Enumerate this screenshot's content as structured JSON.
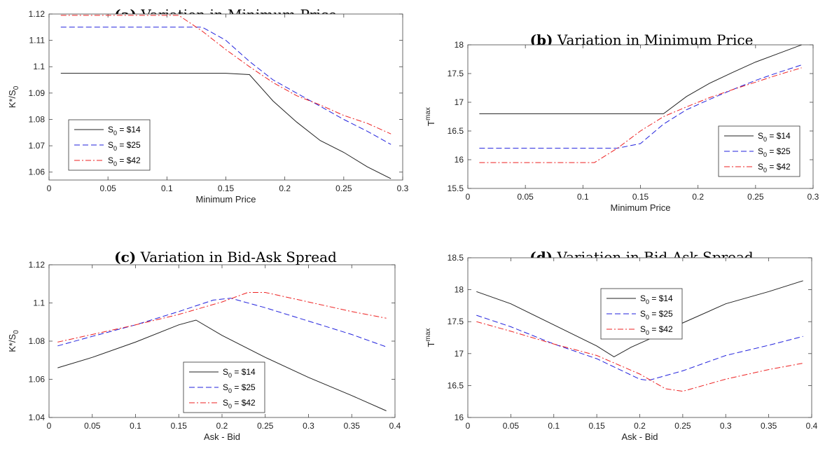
{
  "colors": {
    "s14": "#222222",
    "s25": "#2222dd",
    "s42": "#ee2222"
  },
  "chart_data": [
    {
      "id": "a",
      "type": "line",
      "title_tag": "(a)",
      "title": "Variation in Minimum Price",
      "xlabel": "Minimum Price",
      "ylabel_main": "K*/S",
      "ylabel_sub": "0",
      "xlim": [
        0,
        0.3
      ],
      "ylim": [
        1.057,
        1.12
      ],
      "xticks": [
        0,
        0.05,
        0.1,
        0.15,
        0.2,
        0.25,
        0.3
      ],
      "yticks": [
        1.06,
        1.07,
        1.08,
        1.09,
        1.1,
        1.11,
        1.12
      ],
      "grid": false,
      "legend_position": "left",
      "series": [
        {
          "name": "S0 = $14",
          "sub": "0",
          "value_label": " = $14",
          "style": "solid",
          "points": [
            [
              0.01,
              1.0975
            ],
            [
              0.05,
              1.0975
            ],
            [
              0.1,
              1.0975
            ],
            [
              0.15,
              1.0975
            ],
            [
              0.17,
              1.097
            ],
            [
              0.19,
              1.087
            ],
            [
              0.21,
              1.079
            ],
            [
              0.23,
              1.072
            ],
            [
              0.25,
              1.0675
            ],
            [
              0.27,
              1.062
            ],
            [
              0.29,
              1.0575
            ]
          ]
        },
        {
          "name": "S0 = $25",
          "sub": "0",
          "value_label": " = $25",
          "style": "dashed",
          "points": [
            [
              0.01,
              1.115
            ],
            [
              0.05,
              1.115
            ],
            [
              0.1,
              1.115
            ],
            [
              0.13,
              1.115
            ],
            [
              0.15,
              1.11
            ],
            [
              0.17,
              1.102
            ],
            [
              0.19,
              1.095
            ],
            [
              0.21,
              1.09
            ],
            [
              0.23,
              1.085
            ],
            [
              0.25,
              1.08
            ],
            [
              0.27,
              1.0755
            ],
            [
              0.29,
              1.0705
            ]
          ]
        },
        {
          "name": "S0 = $42",
          "sub": "0",
          "value_label": " = $42",
          "style": "dashdot",
          "points": [
            [
              0.01,
              1.1195
            ],
            [
              0.05,
              1.1195
            ],
            [
              0.1,
              1.1195
            ],
            [
              0.11,
              1.1195
            ],
            [
              0.13,
              1.1135
            ],
            [
              0.15,
              1.1065
            ],
            [
              0.17,
              1.1
            ],
            [
              0.19,
              1.094
            ],
            [
              0.21,
              1.089
            ],
            [
              0.23,
              1.0855
            ],
            [
              0.25,
              1.0815
            ],
            [
              0.27,
              1.0785
            ],
            [
              0.29,
              1.0745
            ]
          ]
        }
      ]
    },
    {
      "id": "b",
      "type": "line",
      "title_tag": "(b)",
      "title": "Variation in Minimum Price",
      "xlabel": "Minimum Price",
      "ylabel_main": "T",
      "ylabel_sup": "max",
      "xlim": [
        0,
        0.3
      ],
      "ylim": [
        15.5,
        18
      ],
      "xticks": [
        0,
        0.05,
        0.1,
        0.15,
        0.2,
        0.25,
        0.3
      ],
      "yticks": [
        15.5,
        16,
        16.5,
        17,
        17.5,
        18
      ],
      "grid": false,
      "legend_position": "right",
      "series": [
        {
          "name": "S0 = $14",
          "sub": "0",
          "value_label": " = $14",
          "style": "solid",
          "points": [
            [
              0.01,
              16.8
            ],
            [
              0.05,
              16.8
            ],
            [
              0.1,
              16.8
            ],
            [
              0.15,
              16.8
            ],
            [
              0.17,
              16.8
            ],
            [
              0.19,
              17.1
            ],
            [
              0.21,
              17.33
            ],
            [
              0.23,
              17.52
            ],
            [
              0.25,
              17.7
            ],
            [
              0.27,
              17.85
            ],
            [
              0.29,
              18.0
            ]
          ]
        },
        {
          "name": "S0 = $25",
          "sub": "0",
          "value_label": " = $25",
          "style": "dashed",
          "points": [
            [
              0.01,
              16.2
            ],
            [
              0.05,
              16.2
            ],
            [
              0.1,
              16.2
            ],
            [
              0.13,
              16.2
            ],
            [
              0.15,
              16.28
            ],
            [
              0.17,
              16.62
            ],
            [
              0.19,
              16.87
            ],
            [
              0.21,
              17.05
            ],
            [
              0.23,
              17.22
            ],
            [
              0.25,
              17.38
            ],
            [
              0.27,
              17.52
            ],
            [
              0.29,
              17.65
            ]
          ]
        },
        {
          "name": "S0 = $42",
          "sub": "0",
          "value_label": " = $42",
          "style": "dashdot",
          "points": [
            [
              0.01,
              15.95
            ],
            [
              0.05,
              15.95
            ],
            [
              0.1,
              15.95
            ],
            [
              0.11,
              15.95
            ],
            [
              0.13,
              16.2
            ],
            [
              0.15,
              16.5
            ],
            [
              0.17,
              16.75
            ],
            [
              0.19,
              16.92
            ],
            [
              0.21,
              17.08
            ],
            [
              0.23,
              17.22
            ],
            [
              0.25,
              17.35
            ],
            [
              0.27,
              17.48
            ],
            [
              0.29,
              17.6
            ]
          ]
        }
      ]
    },
    {
      "id": "c",
      "type": "line",
      "title_tag": "(c)",
      "title": "Variation in Bid-Ask Spread",
      "xlabel": "Ask - Bid",
      "ylabel_main": "K*/S",
      "ylabel_sub": "0",
      "xlim": [
        0,
        0.4
      ],
      "ylim": [
        1.04,
        1.12
      ],
      "xticks": [
        0,
        0.05,
        0.1,
        0.15,
        0.2,
        0.25,
        0.3,
        0.35,
        0.4
      ],
      "yticks": [
        1.04,
        1.06,
        1.08,
        1.1,
        1.12
      ],
      "grid": false,
      "legend_position": "bottom-center",
      "series": [
        {
          "name": "S0 = $14",
          "sub": "0",
          "value_label": " = $14",
          "style": "solid",
          "points": [
            [
              0.01,
              1.066
            ],
            [
              0.05,
              1.0715
            ],
            [
              0.1,
              1.0795
            ],
            [
              0.15,
              1.0885
            ],
            [
              0.17,
              1.091
            ],
            [
              0.2,
              1.083
            ],
            [
              0.25,
              1.0715
            ],
            [
              0.3,
              1.061
            ],
            [
              0.35,
              1.0515
            ],
            [
              0.39,
              1.0435
            ]
          ]
        },
        {
          "name": "S0 = $25",
          "sub": "0",
          "value_label": " = $25",
          "style": "dashed",
          "points": [
            [
              0.01,
              1.0775
            ],
            [
              0.05,
              1.0825
            ],
            [
              0.1,
              1.0885
            ],
            [
              0.15,
              1.0955
            ],
            [
              0.19,
              1.1015
            ],
            [
              0.21,
              1.1025
            ],
            [
              0.25,
              1.0975
            ],
            [
              0.3,
              1.0905
            ],
            [
              0.35,
              1.0835
            ],
            [
              0.39,
              1.077
            ]
          ]
        },
        {
          "name": "S0 = $42",
          "sub": "0",
          "value_label": " = $42",
          "style": "dashdot",
          "points": [
            [
              0.01,
              1.0795
            ],
            [
              0.05,
              1.0835
            ],
            [
              0.1,
              1.0885
            ],
            [
              0.15,
              1.094
            ],
            [
              0.2,
              1.1005
            ],
            [
              0.23,
              1.1055
            ],
            [
              0.25,
              1.1055
            ],
            [
              0.3,
              1.1005
            ],
            [
              0.35,
              1.0955
            ],
            [
              0.39,
              1.092
            ]
          ]
        }
      ]
    },
    {
      "id": "d",
      "type": "line",
      "title_tag": "(d)",
      "title": "Variation in Bid-Ask Spread",
      "xlabel": "Ask - Bid",
      "ylabel_main": "T",
      "ylabel_sup": "max",
      "xlim": [
        0,
        0.4
      ],
      "ylim": [
        16,
        18.5
      ],
      "xticks": [
        0,
        0.05,
        0.1,
        0.15,
        0.2,
        0.25,
        0.3,
        0.35,
        0.4
      ],
      "yticks": [
        16,
        16.5,
        17,
        17.5,
        18,
        18.5
      ],
      "grid": false,
      "legend_position": "top-left",
      "series": [
        {
          "name": "S0 = $14",
          "sub": "0",
          "value_label": " = $14",
          "style": "solid",
          "points": [
            [
              0.01,
              17.97
            ],
            [
              0.05,
              17.78
            ],
            [
              0.1,
              17.45
            ],
            [
              0.15,
              17.12
            ],
            [
              0.17,
              16.95
            ],
            [
              0.19,
              17.1
            ],
            [
              0.21,
              17.22
            ],
            [
              0.25,
              17.48
            ],
            [
              0.3,
              17.78
            ],
            [
              0.35,
              17.97
            ],
            [
              0.39,
              18.14
            ]
          ]
        },
        {
          "name": "S0 = $25",
          "sub": "0",
          "value_label": " = $25",
          "style": "dashed",
          "points": [
            [
              0.01,
              17.6
            ],
            [
              0.05,
              17.42
            ],
            [
              0.1,
              17.15
            ],
            [
              0.15,
              16.92
            ],
            [
              0.2,
              16.6
            ],
            [
              0.21,
              16.58
            ],
            [
              0.25,
              16.73
            ],
            [
              0.3,
              16.97
            ],
            [
              0.35,
              17.13
            ],
            [
              0.39,
              17.27
            ]
          ]
        },
        {
          "name": "S0 = $42",
          "sub": "0",
          "value_label": " = $42",
          "style": "dashdot",
          "points": [
            [
              0.01,
              17.5
            ],
            [
              0.05,
              17.35
            ],
            [
              0.1,
              17.15
            ],
            [
              0.15,
              16.97
            ],
            [
              0.2,
              16.68
            ],
            [
              0.23,
              16.45
            ],
            [
              0.25,
              16.41
            ],
            [
              0.3,
              16.6
            ],
            [
              0.35,
              16.75
            ],
            [
              0.39,
              16.85
            ]
          ]
        }
      ]
    }
  ]
}
